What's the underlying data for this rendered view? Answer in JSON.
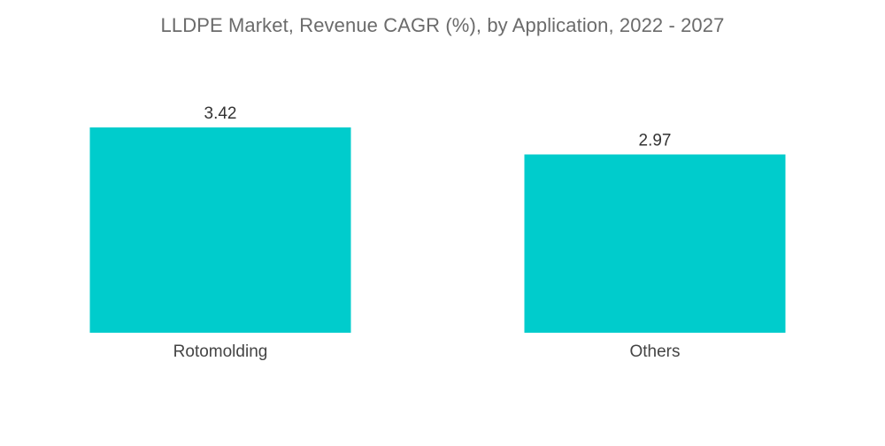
{
  "chart_data": {
    "type": "bar",
    "title": "LLDPE Market, Revenue CAGR (%), by Application, 2022 - 2027",
    "categories": [
      "Rotomolding",
      "Others"
    ],
    "values": [
      3.42,
      2.97
    ],
    "value_labels": [
      "3.42",
      "2.97"
    ],
    "bar_color": "#00cccc",
    "xlabel": "",
    "ylabel": "",
    "ylim": [
      0,
      3.42
    ],
    "grid": false,
    "legend": "none"
  }
}
